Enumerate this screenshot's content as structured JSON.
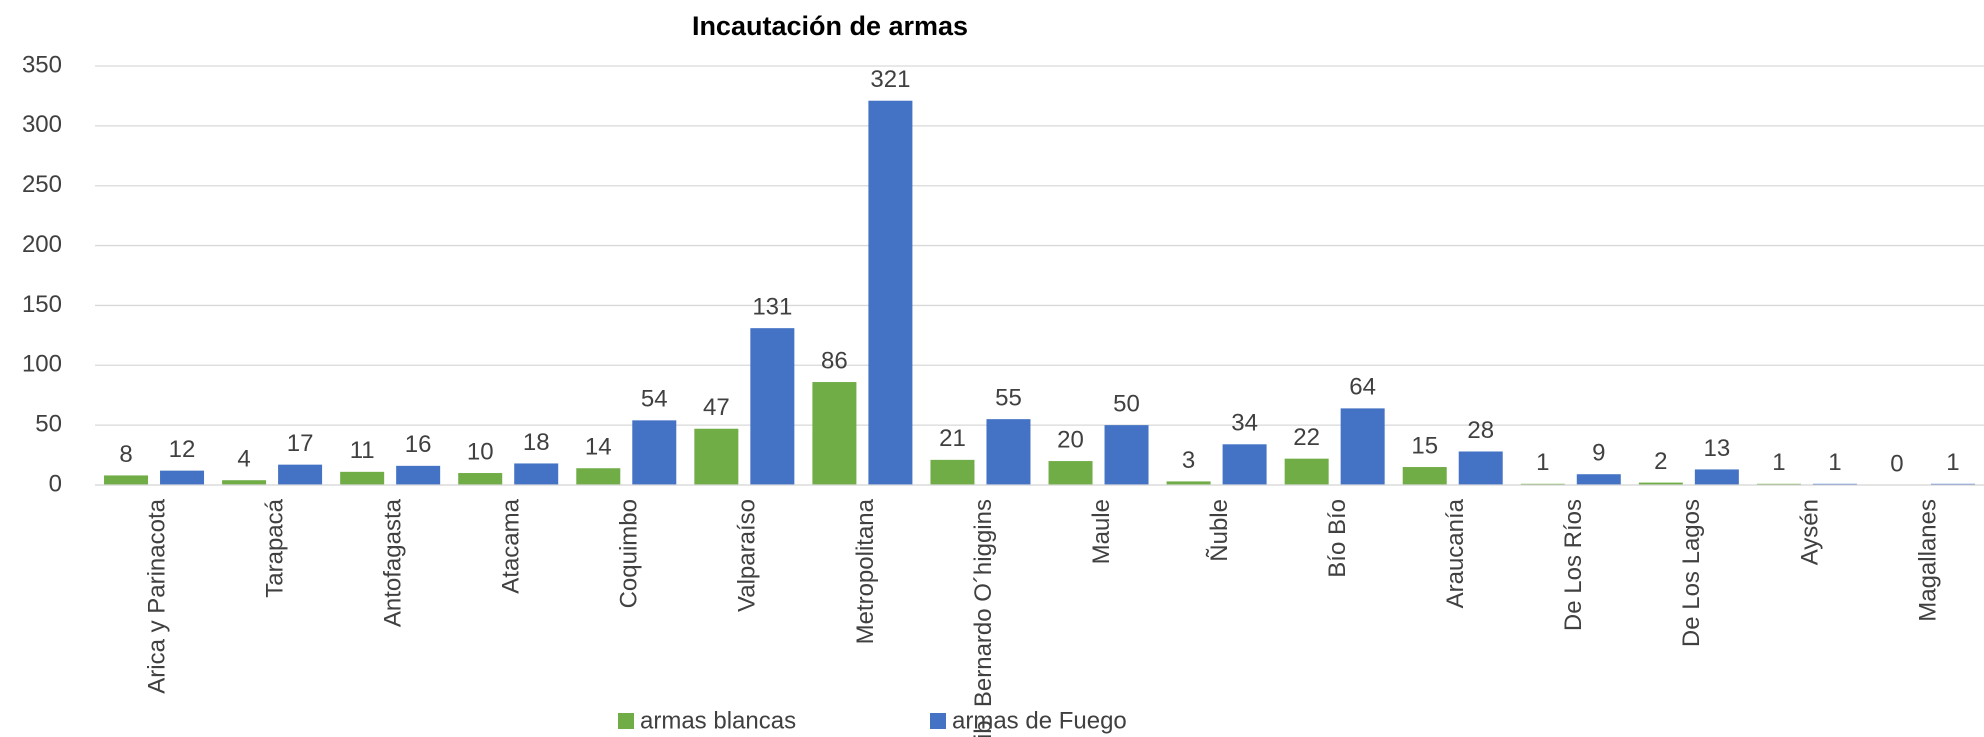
{
  "chart_data": {
    "type": "bar",
    "title": "Incautación de armas",
    "categories": [
      "Arica y Parinacota",
      "Tarapacá",
      "Antofagasta",
      "Atacama",
      "Coquimbo",
      "Valparaíso",
      "Metropolitana",
      "Lib. Bernardo O´higgins",
      "Maule",
      "Ñuble",
      "Bío Bío",
      "Araucanía",
      "De Los Ríos",
      "De Los Lagos",
      "Aysén",
      "Magallanes"
    ],
    "series": [
      {
        "name": "armas blancas",
        "color": "#70ad47",
        "values": [
          8,
          4,
          11,
          10,
          14,
          47,
          86,
          21,
          20,
          3,
          22,
          15,
          1,
          2,
          1,
          0
        ]
      },
      {
        "name": "armas de Fuego",
        "color": "#4472c4",
        "values": [
          12,
          17,
          16,
          18,
          54,
          131,
          321,
          55,
          50,
          34,
          64,
          28,
          9,
          13,
          1,
          1
        ]
      }
    ],
    "ylim": [
      0,
      350
    ],
    "yticks": [
      0,
      50,
      100,
      150,
      200,
      250,
      300,
      350
    ],
    "grid": true,
    "legend": "bottom"
  }
}
